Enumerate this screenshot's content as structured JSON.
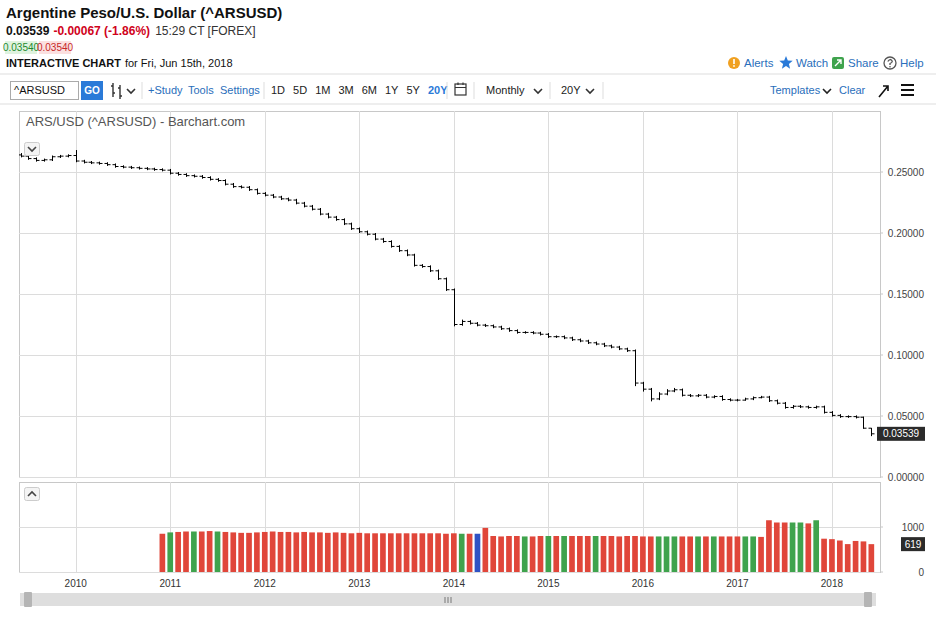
{
  "page": {
    "title": "Argentine Peso/U.S. Dollar (^ARSUSD)",
    "last": "0.03539",
    "change": "-0.00067 (-1.86%)",
    "time": "15:29 CT [FOREX]",
    "bid": "0.03540",
    "ask": "0.03540",
    "chart_label_bold": "INTERACTIVE CHART",
    "chart_label_rest": "for Fri, Jun 15th, 2018",
    "actions": [
      "Alerts",
      "Watch",
      "Share",
      "Help"
    ],
    "symbol": "^ARSUSD",
    "go": "GO",
    "tools": [
      "+Study",
      "Tools",
      "Settings"
    ],
    "ranges": [
      "1D",
      "5D",
      "1M",
      "3M",
      "6M",
      "1Y",
      "5Y",
      "20Y"
    ],
    "interval": "Monthly",
    "period": "20Y",
    "templates": "Templates",
    "clear": "Clear"
  },
  "chart_data": [
    {
      "type": "ohlc",
      "title": "ARS/USD (^ARSUSD) - Barchart.com",
      "color": "#000000",
      "categories": [
        null,
        null,
        null,
        null,
        null,
        null,
        null,
        "2010",
        null,
        null,
        null,
        null,
        null,
        null,
        null,
        null,
        null,
        null,
        null,
        "2011",
        null,
        null,
        null,
        null,
        null,
        null,
        null,
        null,
        null,
        null,
        null,
        "2012",
        null,
        null,
        null,
        null,
        null,
        null,
        null,
        null,
        null,
        null,
        null,
        "2013",
        null,
        null,
        null,
        null,
        null,
        null,
        null,
        null,
        null,
        null,
        null,
        "2014",
        null,
        null,
        null,
        null,
        null,
        null,
        null,
        null,
        null,
        null,
        null,
        "2015",
        null,
        null,
        null,
        null,
        null,
        null,
        null,
        null,
        null,
        null,
        null,
        "2016",
        null,
        null,
        null,
        null,
        null,
        null,
        null,
        null,
        null,
        null,
        null,
        "2017",
        null,
        null,
        null,
        null,
        null,
        null,
        null,
        null,
        null,
        null,
        null,
        "2018",
        null,
        null,
        null,
        null,
        null
      ],
      "open": [
        0.264,
        0.263,
        0.261,
        0.2595,
        0.26,
        0.2625,
        0.263,
        0.2635,
        0.259,
        0.258,
        0.2575,
        0.257,
        0.256,
        0.2545,
        0.254,
        0.2535,
        0.253,
        0.2525,
        0.252,
        0.2515,
        0.249,
        0.248,
        0.247,
        0.2465,
        0.2455,
        0.244,
        0.243,
        0.24,
        0.238,
        0.2375,
        0.2355,
        0.2325,
        0.231,
        0.2295,
        0.228,
        0.227,
        0.2245,
        0.222,
        0.2195,
        0.2155,
        0.213,
        0.211,
        0.2075,
        0.2035,
        0.201,
        0.199,
        0.195,
        0.193,
        0.189,
        0.1855,
        0.182,
        0.1735,
        0.1725,
        0.169,
        0.1625,
        0.1535,
        0.125,
        0.1275,
        0.126,
        0.1245,
        0.124,
        0.123,
        0.1215,
        0.12,
        0.1185,
        0.1185,
        0.118,
        0.117,
        0.115,
        0.115,
        0.114,
        0.1125,
        0.1115,
        0.11,
        0.109,
        0.1075,
        0.1065,
        0.105,
        0.1035,
        0.077,
        0.072,
        0.064,
        0.068,
        0.0705,
        0.0715,
        0.067,
        0.0665,
        0.067,
        0.0655,
        0.066,
        0.0635,
        0.063,
        0.063,
        0.064,
        0.065,
        0.0655,
        0.0625,
        0.0605,
        0.057,
        0.058,
        0.0575,
        0.057,
        0.0575,
        0.053,
        0.0505,
        0.0495,
        0.0495,
        0.049,
        0.04
      ],
      "high": [
        0.2655,
        0.264,
        0.262,
        0.261,
        0.2635,
        0.264,
        0.2645,
        0.268,
        0.26,
        0.259,
        0.2585,
        0.258,
        0.257,
        0.2555,
        0.255,
        0.2545,
        0.254,
        0.2535,
        0.253,
        0.2525,
        0.25,
        0.249,
        0.248,
        0.2475,
        0.2465,
        0.245,
        0.244,
        0.241,
        0.239,
        0.2385,
        0.2365,
        0.2335,
        0.232,
        0.2305,
        0.229,
        0.228,
        0.2255,
        0.223,
        0.2205,
        0.2165,
        0.214,
        0.212,
        0.2085,
        0.2045,
        0.202,
        0.2,
        0.196,
        0.194,
        0.19,
        0.1865,
        0.183,
        0.1745,
        0.1735,
        0.17,
        0.1635,
        0.1545,
        0.129,
        0.1285,
        0.127,
        0.1255,
        0.125,
        0.124,
        0.1225,
        0.121,
        0.1195,
        0.1195,
        0.119,
        0.118,
        0.116,
        0.116,
        0.115,
        0.1135,
        0.1125,
        0.111,
        0.11,
        0.1085,
        0.1075,
        0.106,
        0.1045,
        0.078,
        0.073,
        0.0695,
        0.072,
        0.073,
        0.0725,
        0.068,
        0.068,
        0.068,
        0.067,
        0.067,
        0.0645,
        0.064,
        0.065,
        0.066,
        0.0665,
        0.0665,
        0.0635,
        0.0615,
        0.059,
        0.059,
        0.0585,
        0.0585,
        0.0585,
        0.054,
        0.0515,
        0.0505,
        0.0505,
        0.0495,
        0.0402
      ],
      "low": [
        0.262,
        0.26,
        0.2585,
        0.2585,
        0.259,
        0.2615,
        0.262,
        0.258,
        0.257,
        0.2565,
        0.256,
        0.255,
        0.2535,
        0.253,
        0.2525,
        0.252,
        0.2515,
        0.251,
        0.2505,
        0.248,
        0.247,
        0.246,
        0.2455,
        0.2445,
        0.243,
        0.242,
        0.239,
        0.237,
        0.2365,
        0.2345,
        0.2315,
        0.23,
        0.2285,
        0.227,
        0.226,
        0.2235,
        0.221,
        0.2185,
        0.2145,
        0.212,
        0.21,
        0.2065,
        0.2025,
        0.2,
        0.198,
        0.194,
        0.192,
        0.188,
        0.1845,
        0.181,
        0.1725,
        0.1715,
        0.168,
        0.1615,
        0.1525,
        0.1235,
        0.124,
        0.125,
        0.1235,
        0.123,
        0.122,
        0.1205,
        0.119,
        0.1175,
        0.1175,
        0.117,
        0.116,
        0.114,
        0.114,
        0.113,
        0.1115,
        0.1105,
        0.109,
        0.108,
        0.1065,
        0.1055,
        0.104,
        0.1025,
        0.0745,
        0.07,
        0.062,
        0.063,
        0.067,
        0.0695,
        0.066,
        0.0655,
        0.0655,
        0.0645,
        0.0645,
        0.0625,
        0.062,
        0.062,
        0.0625,
        0.063,
        0.0645,
        0.0615,
        0.0595,
        0.056,
        0.056,
        0.0565,
        0.056,
        0.056,
        0.052,
        0.0495,
        0.0485,
        0.0485,
        0.048,
        0.0395,
        0.0335
      ],
      "close": [
        0.263,
        0.261,
        0.2595,
        0.26,
        0.2625,
        0.263,
        0.2635,
        0.259,
        0.258,
        0.2575,
        0.257,
        0.256,
        0.2545,
        0.254,
        0.2535,
        0.253,
        0.2525,
        0.252,
        0.2515,
        0.249,
        0.248,
        0.247,
        0.2465,
        0.2455,
        0.244,
        0.243,
        0.24,
        0.238,
        0.2375,
        0.2355,
        0.2325,
        0.231,
        0.2295,
        0.228,
        0.227,
        0.2245,
        0.222,
        0.2195,
        0.2155,
        0.213,
        0.211,
        0.2075,
        0.2035,
        0.201,
        0.199,
        0.195,
        0.193,
        0.189,
        0.1855,
        0.182,
        0.1735,
        0.1725,
        0.169,
        0.1625,
        0.1535,
        0.125,
        0.1275,
        0.126,
        0.1245,
        0.124,
        0.123,
        0.1215,
        0.12,
        0.1185,
        0.1185,
        0.118,
        0.117,
        0.115,
        0.115,
        0.114,
        0.1125,
        0.1115,
        0.11,
        0.109,
        0.1075,
        0.1065,
        0.105,
        0.1035,
        0.077,
        0.072,
        0.064,
        0.068,
        0.0705,
        0.0715,
        0.067,
        0.0665,
        0.067,
        0.0655,
        0.066,
        0.0635,
        0.063,
        0.063,
        0.064,
        0.065,
        0.0655,
        0.0625,
        0.0605,
        0.057,
        0.058,
        0.0575,
        0.057,
        0.0575,
        0.053,
        0.0505,
        0.0495,
        0.0495,
        0.049,
        0.04,
        0.03539
      ],
      "ylim": [
        0,
        0.3
      ],
      "yticks": [
        {
          "value": 0,
          "label": "0.00000"
        },
        {
          "value": 0.05,
          "label": "0.05000"
        },
        {
          "value": 0.1,
          "label": "0.10000"
        },
        {
          "value": 0.15,
          "label": "0.15000"
        },
        {
          "value": 0.2,
          "label": "0.20000"
        },
        {
          "value": 0.25,
          "label": "0.25000"
        }
      ],
      "grid": true,
      "annotations": [
        {
          "y": 0.03539,
          "label": "0.03539"
        }
      ]
    },
    {
      "type": "bar",
      "categories": [
        null,
        null,
        null,
        null,
        null,
        null,
        null,
        "2010",
        null,
        null,
        null,
        null,
        null,
        null,
        null,
        null,
        null,
        null,
        null,
        "2011",
        null,
        null,
        null,
        null,
        null,
        null,
        null,
        null,
        null,
        null,
        null,
        "2012",
        null,
        null,
        null,
        null,
        null,
        null,
        null,
        null,
        null,
        null,
        null,
        "2013",
        null,
        null,
        null,
        null,
        null,
        null,
        null,
        null,
        null,
        null,
        null,
        "2014",
        null,
        null,
        null,
        null,
        null,
        null,
        null,
        null,
        null,
        null,
        null,
        "2015",
        null,
        null,
        null,
        null,
        null,
        null,
        null,
        null,
        null,
        null,
        null,
        "2016",
        null,
        null,
        null,
        null,
        null,
        null,
        null,
        null,
        null,
        null,
        null,
        "2017",
        null,
        null,
        null,
        null,
        null,
        null,
        null,
        null,
        null,
        null,
        null,
        "2018",
        null,
        null,
        null,
        null,
        null
      ],
      "values": [
        null,
        null,
        null,
        null,
        null,
        null,
        null,
        null,
        null,
        null,
        null,
        null,
        null,
        null,
        null,
        null,
        null,
        null,
        850,
        880,
        890,
        900,
        900,
        900,
        910,
        900,
        890,
        880,
        870,
        870,
        880,
        890,
        900,
        890,
        890,
        880,
        890,
        880,
        880,
        870,
        880,
        870,
        860,
        870,
        860,
        860,
        860,
        860,
        860,
        860,
        860,
        860,
        860,
        860,
        850,
        860,
        850,
        850,
        850,
        980,
        800,
        790,
        800,
        800,
        790,
        790,
        800,
        800,
        800,
        800,
        800,
        800,
        800,
        800,
        800,
        800,
        790,
        800,
        800,
        790,
        790,
        790,
        790,
        790,
        790,
        790,
        790,
        790,
        790,
        790,
        790,
        790,
        790,
        790,
        780,
        1150,
        1100,
        1100,
        1100,
        1100,
        1080,
        1150,
        740,
        730,
        700,
        620,
        690,
        680,
        619
      ],
      "colors": [
        null,
        null,
        null,
        null,
        null,
        null,
        null,
        null,
        null,
        null,
        null,
        null,
        null,
        null,
        null,
        null,
        null,
        null,
        "#e0463a",
        "#3fa34d",
        "#e0463a",
        "#e0463a",
        "#3fa34d",
        "#e0463a",
        "#e0463a",
        "#3fa34d",
        "#e0463a",
        "#e0463a",
        "#e0463a",
        "#e0463a",
        "#e0463a",
        "#e0463a",
        "#e0463a",
        "#e0463a",
        "#e0463a",
        "#e0463a",
        "#e0463a",
        "#e0463a",
        "#e0463a",
        "#e0463a",
        "#e0463a",
        "#e0463a",
        "#e0463a",
        "#e0463a",
        "#e0463a",
        "#e0463a",
        "#e0463a",
        "#e0463a",
        "#e0463a",
        "#e0463a",
        "#e0463a",
        "#e0463a",
        "#e0463a",
        "#e0463a",
        "#e0463a",
        "#e0463a",
        "#3fa34d",
        "#e0463a",
        "#2f52c4",
        "#e0463a",
        "#e0463a",
        "#e0463a",
        "#e0463a",
        "#e0463a",
        "#3fa34d",
        "#e0463a",
        "#e0463a",
        "#3fa34d",
        "#e0463a",
        "#3fa34d",
        "#e0463a",
        "#e0463a",
        "#e0463a",
        "#3fa34d",
        "#e0463a",
        "#e0463a",
        "#e0463a",
        "#e0463a",
        "#e0463a",
        "#e0463a",
        "#e0463a",
        "#3fa34d",
        "#3fa34d",
        "#3fa34d",
        "#e0463a",
        "#e0463a",
        "#3fa34d",
        "#e0463a",
        "#3fa34d",
        "#e0463a",
        "#e0463a",
        "#e0463a",
        "#3fa34d",
        "#3fa34d",
        "#e0463a",
        "#e0463a",
        "#e0463a",
        "#e0463a",
        "#3fa34d",
        "#3fa34d",
        "#e0463a",
        "#3fa34d",
        "#e0463a",
        "#e0463a",
        "#e0463a",
        "#e0463a",
        "#e0463a",
        "#e0463a",
        "#e0463a"
      ],
      "ylim": [
        0,
        2000
      ],
      "yticks": [
        0,
        1000
      ],
      "grid": true,
      "tick_labels": "y",
      "annotations": [
        {
          "y": 619,
          "label": "619"
        }
      ]
    }
  ]
}
